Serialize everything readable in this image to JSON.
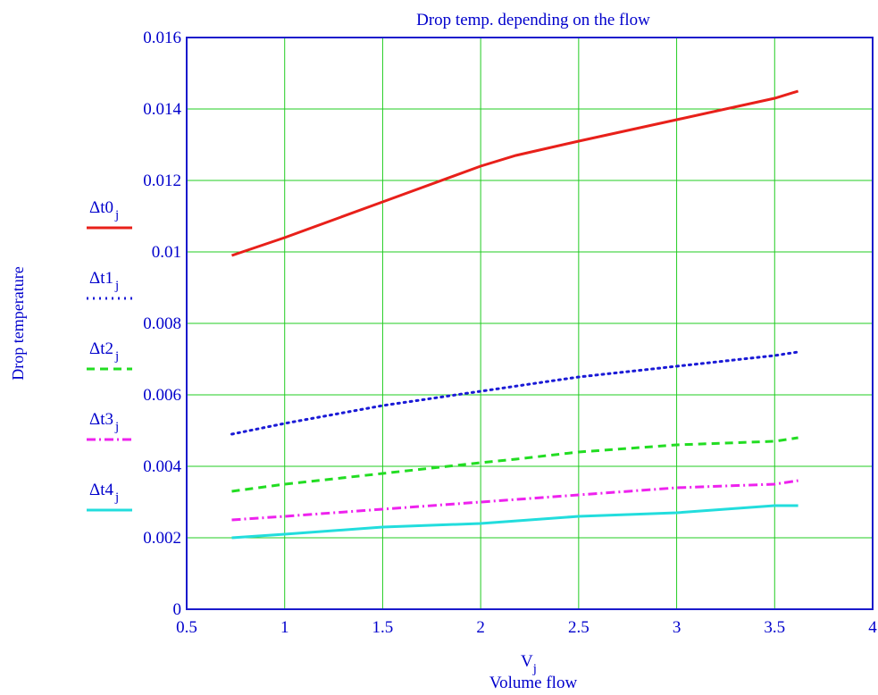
{
  "chart_data": {
    "type": "line",
    "title": "Drop temp. depending on the flow",
    "xlabel_var": "V",
    "xlabel_sub": "j",
    "xlabel": "Volume flow",
    "ylabel": "Drop temperature",
    "xlim": [
      0.5,
      4
    ],
    "ylim": [
      0,
      0.016
    ],
    "xticks": [
      0.5,
      1,
      1.5,
      2,
      2.5,
      3,
      3.5,
      4
    ],
    "xtick_labels": [
      "0.5",
      "1",
      "1.5",
      "2",
      "2.5",
      "3",
      "3.5",
      "4"
    ],
    "yticks": [
      0,
      0.002,
      0.004,
      0.006,
      0.008,
      0.01,
      0.012,
      0.014,
      0.016
    ],
    "ytick_labels": [
      "0",
      "0.002",
      "0.004",
      "0.006",
      "0.008",
      "0.01",
      "0.012",
      "0.014",
      "0.016"
    ],
    "grid": true,
    "legend_position": "left",
    "series": [
      {
        "name": "Δt0",
        "sub": "j",
        "color": "#e8201a",
        "style": "solid",
        "x": [
          0.73,
          1.0,
          1.5,
          2.0,
          2.18,
          2.5,
          3.0,
          3.5,
          3.62
        ],
        "y": [
          0.0099,
          0.0104,
          0.0114,
          0.0124,
          0.0127,
          0.0131,
          0.0137,
          0.0143,
          0.0145
        ]
      },
      {
        "name": "Δt1",
        "sub": "j",
        "color": "#1a1ad6",
        "style": "dotted",
        "x": [
          0.73,
          1.0,
          1.5,
          2.0,
          2.5,
          3.0,
          3.5,
          3.62
        ],
        "y": [
          0.0049,
          0.0052,
          0.0057,
          0.0061,
          0.0065,
          0.0068,
          0.0071,
          0.0072
        ]
      },
      {
        "name": "Δt2",
        "sub": "j",
        "color": "#22dd22",
        "style": "dashed",
        "x": [
          0.73,
          1.0,
          1.5,
          2.0,
          2.18,
          2.5,
          3.0,
          3.5,
          3.62
        ],
        "y": [
          0.0033,
          0.0035,
          0.0038,
          0.0041,
          0.0042,
          0.0044,
          0.0046,
          0.0047,
          0.0048
        ]
      },
      {
        "name": "Δt3",
        "sub": "j",
        "color": "#ee22ee",
        "style": "dashdot",
        "x": [
          0.73,
          1.0,
          1.5,
          2.0,
          2.5,
          3.0,
          3.5,
          3.62
        ],
        "y": [
          0.0025,
          0.0026,
          0.0028,
          0.003,
          0.0032,
          0.0034,
          0.0035,
          0.0036
        ]
      },
      {
        "name": "Δt4",
        "sub": "j",
        "color": "#22dddd",
        "style": "solid",
        "x": [
          0.73,
          1.0,
          1.5,
          2.0,
          2.5,
          3.0,
          3.5,
          3.62
        ],
        "y": [
          0.002,
          0.0021,
          0.0023,
          0.0024,
          0.0026,
          0.0027,
          0.0029,
          0.0029
        ]
      }
    ]
  },
  "colors": {
    "text": "#0000cc",
    "grid": "#22cc22",
    "frame": "#1a1acc"
  }
}
